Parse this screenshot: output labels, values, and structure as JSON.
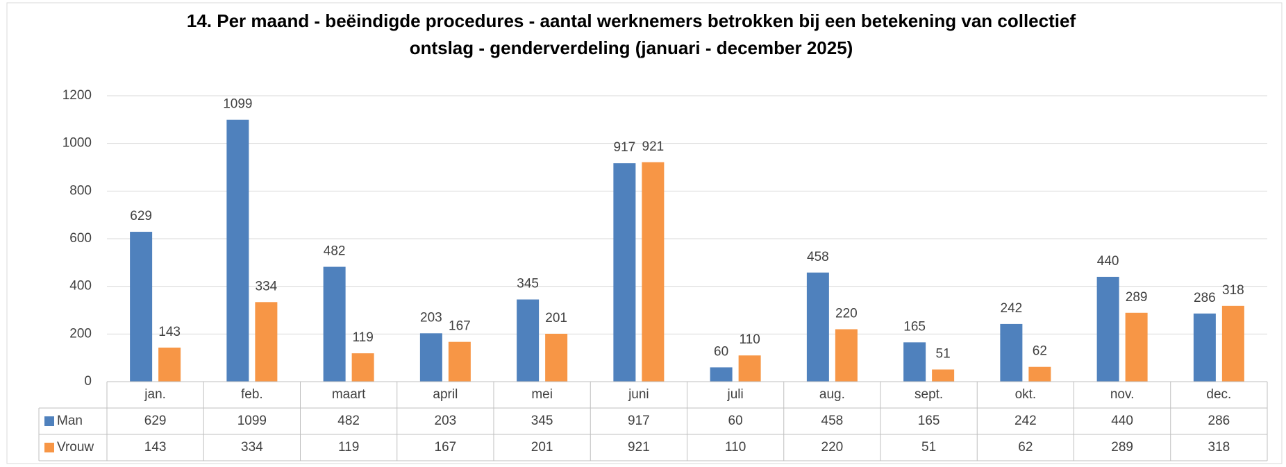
{
  "chart_data": {
    "type": "bar",
    "title_lines": [
      "14. Per maand - beëindigde procedures - aantal werknemers betrokken bij een betekening van collectief",
      "ontslag - genderverdeling (januari - december 2025)"
    ],
    "categories": [
      "jan.",
      "feb.",
      "maart",
      "april",
      "mei",
      "juni",
      "juli",
      "aug.",
      "sept.",
      "okt.",
      "nov.",
      "dec."
    ],
    "series": [
      {
        "name": "Man",
        "color": "#4f81bd",
        "values": [
          629,
          1099,
          482,
          203,
          345,
          917,
          60,
          458,
          165,
          242,
          440,
          286
        ]
      },
      {
        "name": "Vrouw",
        "color": "#f79646",
        "values": [
          143,
          334,
          119,
          167,
          201,
          921,
          110,
          220,
          51,
          62,
          289,
          318
        ]
      }
    ],
    "ylim": [
      0,
      1200
    ],
    "yticks": [
      0,
      200,
      400,
      600,
      800,
      1000,
      1200
    ],
    "grid": true,
    "data_table": true
  }
}
